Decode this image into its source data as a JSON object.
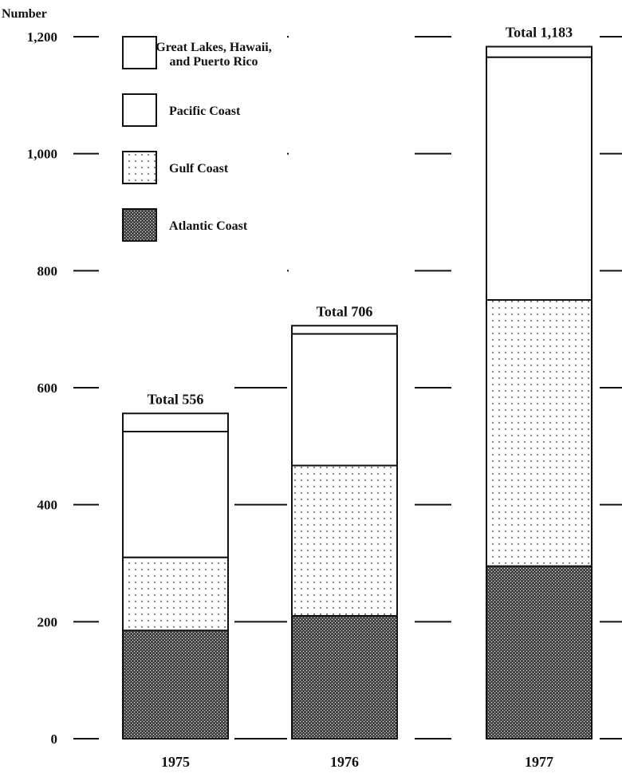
{
  "chart_data": {
    "type": "bar",
    "stacked": true,
    "ylabel": "Number",
    "ylim": [
      0,
      1200
    ],
    "yticks": [
      0,
      200,
      400,
      600,
      800,
      1000,
      1200
    ],
    "ytick_labels": [
      "0",
      "200",
      "400",
      "600",
      "800",
      "1,000",
      "1,200"
    ],
    "categories": [
      "1975",
      "1976",
      "1977"
    ],
    "totals": [
      556,
      706,
      1183
    ],
    "total_labels": [
      "Total  556",
      "Total 706",
      "Total 1,183"
    ],
    "series": [
      {
        "name": "Atlantic Coast",
        "pattern": "dense",
        "values": [
          185,
          210,
          295
        ]
      },
      {
        "name": "Gulf Coast",
        "pattern": "dots",
        "values": [
          125,
          257,
          455
        ]
      },
      {
        "name": "Pacific Coast",
        "pattern": "blank",
        "values": [
          215,
          225,
          415
        ]
      },
      {
        "name": "Great Lakes, Hawaii, and Puerto Rico",
        "pattern": "blank",
        "values": [
          31,
          14,
          18
        ]
      }
    ],
    "legend": {
      "placement": "top-left",
      "entries": [
        {
          "label_lines": [
            "Great Lakes, Hawaii,",
            "and Puerto Rico"
          ],
          "pattern": "blank"
        },
        {
          "label_lines": [
            "Pacific Coast"
          ],
          "pattern": "blank"
        },
        {
          "label_lines": [
            "Gulf Coast"
          ],
          "pattern": "dots"
        },
        {
          "label_lines": [
            "Atlantic Coast"
          ],
          "pattern": "dense"
        }
      ]
    },
    "grid": true
  }
}
